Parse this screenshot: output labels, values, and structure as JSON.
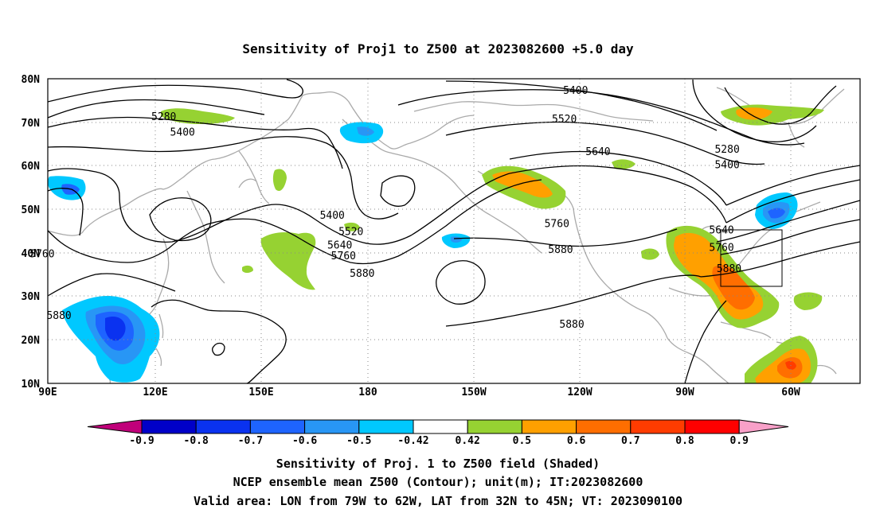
{
  "title": "Sensitivity of Proj1 to Z500 at 2023082600 +5.0 day",
  "axes": {
    "lat_labels": [
      "80N",
      "70N",
      "60N",
      "50N",
      "40N",
      "30N",
      "20N",
      "10N"
    ],
    "lon_labels": [
      "90E",
      "120E",
      "150E",
      "180",
      "150W",
      "120W",
      "90W",
      "60W"
    ]
  },
  "contour_labels": [
    {
      "text": "5280",
      "lon": 121,
      "lat": 71.2
    },
    {
      "text": "5400",
      "lon": 126,
      "lat": 67.7
    },
    {
      "text": "5400",
      "lon": 231,
      "lat": 77.3
    },
    {
      "text": "5520",
      "lon": 228,
      "lat": 70.7
    },
    {
      "text": "5640",
      "lon": 237,
      "lat": 63.2
    },
    {
      "text": "5280",
      "lon": 271.5,
      "lat": 63.7
    },
    {
      "text": "5400",
      "lon": 271.5,
      "lat": 60.2
    },
    {
      "text": "5400",
      "lon": 166,
      "lat": 48.6
    },
    {
      "text": "5520",
      "lon": 171,
      "lat": 44.8
    },
    {
      "text": "5640",
      "lon": 168,
      "lat": 41.7
    },
    {
      "text": "5760",
      "lon": 169,
      "lat": 39.2
    },
    {
      "text": "5880",
      "lon": 174,
      "lat": 35.2
    },
    {
      "text": "5760",
      "lon": 226,
      "lat": 46.6
    },
    {
      "text": "5880",
      "lon": 227,
      "lat": 40.7
    },
    {
      "text": "5880",
      "lon": 230,
      "lat": 23.5
    },
    {
      "text": "5760",
      "lon": 88.5,
      "lat": 39.7
    },
    {
      "text": "5880",
      "lon": 93,
      "lat": 25.5
    },
    {
      "text": "5640",
      "lon": 270,
      "lat": 45.2
    },
    {
      "text": "5760",
      "lon": 270,
      "lat": 41.2
    },
    {
      "text": "5880",
      "lon": 272,
      "lat": 36.3
    }
  ],
  "valid_area": {
    "lon_min": -79,
    "lon_max": -62,
    "lat_min": 32,
    "lat_max": 45
  },
  "colorbar": {
    "labels": [
      "-0.9",
      "-0.8",
      "-0.7",
      "-0.6",
      "-0.5",
      "-0.42",
      "0.42",
      "0.5",
      "0.6",
      "0.7",
      "0.8",
      "0.9"
    ],
    "colors": [
      "#0000c8",
      "#0a32f0",
      "#1e64ff",
      "#2896f5",
      "#00c8ff",
      "#ffffff",
      "#96d232",
      "#ffa000",
      "#ff6e00",
      "#ff3c00",
      "#ff0000"
    ],
    "low_extend_color": "#c0007a",
    "high_extend_color": "#f8a0c8"
  },
  "caption": {
    "line1": "Sensitivity of Proj. 1 to Z500 field (Shaded)",
    "line2": "NCEP ensemble mean Z500 (Contour); unit(m); IT:2023082600",
    "line3": "Valid area: LON from 79W to 62W, LAT from 32N to 45N; VT: 2023090100"
  }
}
